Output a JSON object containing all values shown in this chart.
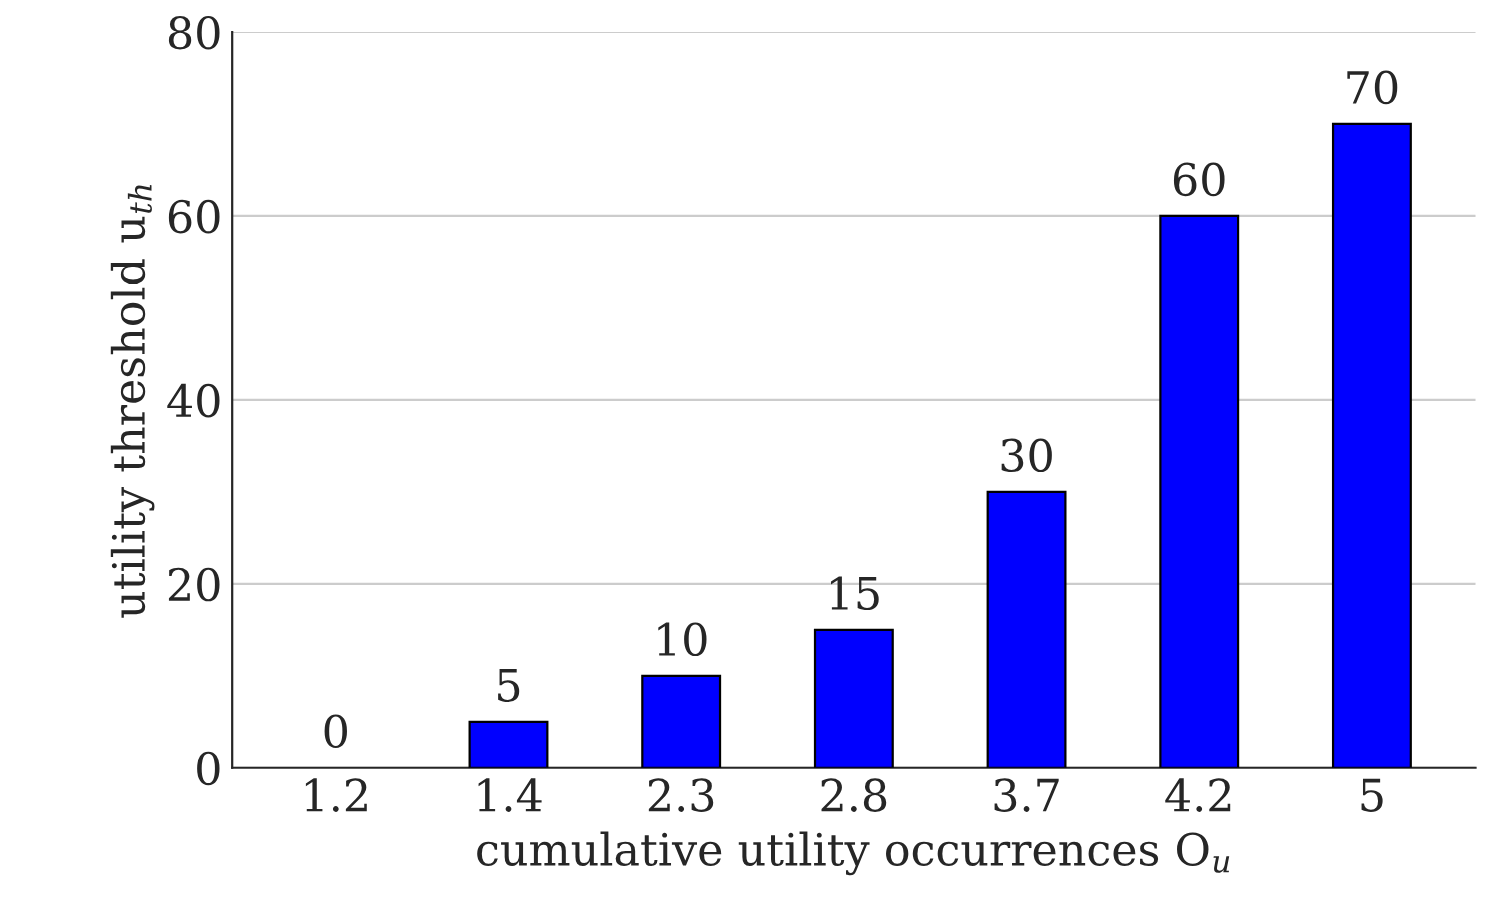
{
  "chart_data": {
    "type": "bar",
    "categories": [
      "1.2",
      "1.4",
      "2.3",
      "2.8",
      "3.7",
      "4.2",
      "5"
    ],
    "values": [
      0,
      5,
      10,
      15,
      30,
      60,
      70
    ],
    "color": "#0000ff",
    "xlabel": "cumulative utility occurrences O$_{u}$",
    "ylabel": "utility threshold u$_{th}$",
    "ylim": [
      0,
      80
    ],
    "yticks": [
      0,
      20,
      40,
      60,
      80
    ],
    "grid": "y",
    "data_labels": true
  }
}
